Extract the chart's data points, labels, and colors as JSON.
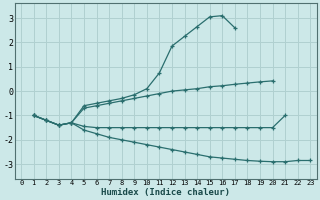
{
  "background_color": "#cce8e8",
  "grid_color": "#b0d0d0",
  "line_color": "#2a6e6e",
  "xlabel": "Humidex (Indice chaleur)",
  "xlim": [
    -0.5,
    23.5
  ],
  "ylim": [
    -3.6,
    3.6
  ],
  "yticks": [
    -3,
    -2,
    -1,
    0,
    1,
    2,
    3
  ],
  "xticks": [
    0,
    1,
    2,
    3,
    4,
    5,
    6,
    7,
    8,
    9,
    10,
    11,
    12,
    13,
    14,
    15,
    16,
    17,
    18,
    19,
    20,
    21,
    22,
    23
  ],
  "lines": [
    {
      "x": [
        1,
        2,
        3,
        4,
        5,
        6,
        7,
        8,
        9,
        10,
        11,
        12,
        13,
        14,
        15,
        16,
        17
      ],
      "y": [
        -1.0,
        -1.2,
        -1.4,
        -1.3,
        -0.6,
        -0.5,
        -0.4,
        -0.3,
        -0.15,
        0.1,
        0.75,
        1.85,
        2.25,
        2.65,
        3.05,
        3.1,
        2.6
      ],
      "marker": true
    },
    {
      "x": [
        1,
        2,
        3,
        4,
        5,
        6,
        7,
        8,
        9,
        10,
        11,
        12,
        13,
        14,
        15,
        16,
        17,
        18,
        19,
        20
      ],
      "y": [
        -1.0,
        -1.2,
        -1.4,
        -1.3,
        -0.7,
        -0.6,
        -0.5,
        -0.4,
        -0.3,
        -0.2,
        -0.1,
        0.0,
        0.05,
        0.1,
        0.18,
        0.22,
        0.28,
        0.33,
        0.38,
        0.42
      ],
      "marker": true
    },
    {
      "x": [
        1,
        2,
        3,
        4,
        5,
        6,
        7,
        8,
        9,
        10,
        11,
        12,
        13,
        14,
        15,
        16,
        17,
        18,
        19,
        20,
        21
      ],
      "y": [
        -1.0,
        -1.2,
        -1.4,
        -1.3,
        -1.45,
        -1.5,
        -1.5,
        -1.5,
        -1.5,
        -1.5,
        -1.5,
        -1.5,
        -1.5,
        -1.5,
        -1.5,
        -1.5,
        -1.5,
        -1.5,
        -1.5,
        -1.5,
        -1.0
      ],
      "marker": true
    },
    {
      "x": [
        1,
        2,
        3,
        4,
        5,
        6,
        7,
        8,
        9,
        10,
        11,
        12,
        13,
        14,
        15,
        16,
        17,
        18,
        19,
        20,
        21,
        22,
        23
      ],
      "y": [
        -1.0,
        -1.2,
        -1.4,
        -1.3,
        -1.6,
        -1.75,
        -1.9,
        -2.0,
        -2.1,
        -2.2,
        -2.3,
        -2.4,
        -2.5,
        -2.6,
        -2.7,
        -2.75,
        -2.8,
        -2.85,
        -2.88,
        -2.9,
        -2.9,
        -2.85,
        -2.85
      ],
      "marker": true
    }
  ]
}
